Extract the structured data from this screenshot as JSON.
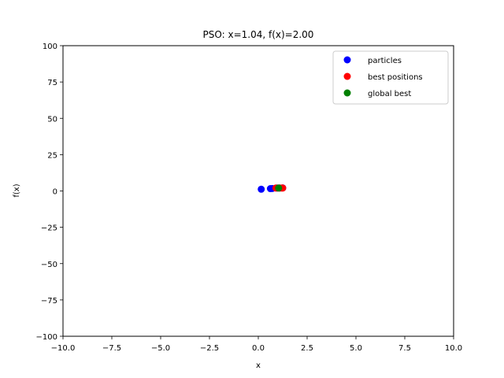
{
  "chart_data": {
    "type": "scatter",
    "title": "PSO: x=1.04, f(x)=2.00",
    "xlabel": "x",
    "ylabel": "f(x)",
    "xlim": [
      -10,
      10
    ],
    "ylim": [
      -100,
      100
    ],
    "xticks": [
      -10,
      -7.5,
      -5,
      -2.5,
      0,
      2.5,
      5,
      7.5,
      10
    ],
    "xtick_labels": [
      "−10.0",
      "−7.5",
      "−5.0",
      "−2.5",
      "0.0",
      "2.5",
      "5.0",
      "7.5",
      "10.0"
    ],
    "yticks": [
      -100,
      -75,
      -50,
      -25,
      0,
      25,
      50,
      75,
      100
    ],
    "ytick_labels": [
      "−100",
      "−75",
      "−50",
      "−25",
      "0",
      "25",
      "50",
      "75",
      "100"
    ],
    "grid": false,
    "legend_position": "top-right",
    "series": [
      {
        "name": "particles",
        "color": "#0000ff",
        "points": [
          {
            "x": 0.15,
            "y": 1.2
          },
          {
            "x": 0.62,
            "y": 1.6
          },
          {
            "x": 0.72,
            "y": 1.7
          },
          {
            "x": 0.95,
            "y": 2.0
          },
          {
            "x": 1.1,
            "y": 2.0
          },
          {
            "x": 1.25,
            "y": 2.1
          }
        ]
      },
      {
        "name": "best positions",
        "color": "#ff0000",
        "points": [
          {
            "x": 0.9,
            "y": 2.0
          },
          {
            "x": 1.0,
            "y": 2.0
          },
          {
            "x": 1.1,
            "y": 2.0
          },
          {
            "x": 1.2,
            "y": 2.0
          },
          {
            "x": 1.25,
            "y": 2.0
          }
        ]
      },
      {
        "name": "global best",
        "color": "#008000",
        "points": [
          {
            "x": 1.04,
            "y": 2.0
          }
        ]
      }
    ]
  }
}
